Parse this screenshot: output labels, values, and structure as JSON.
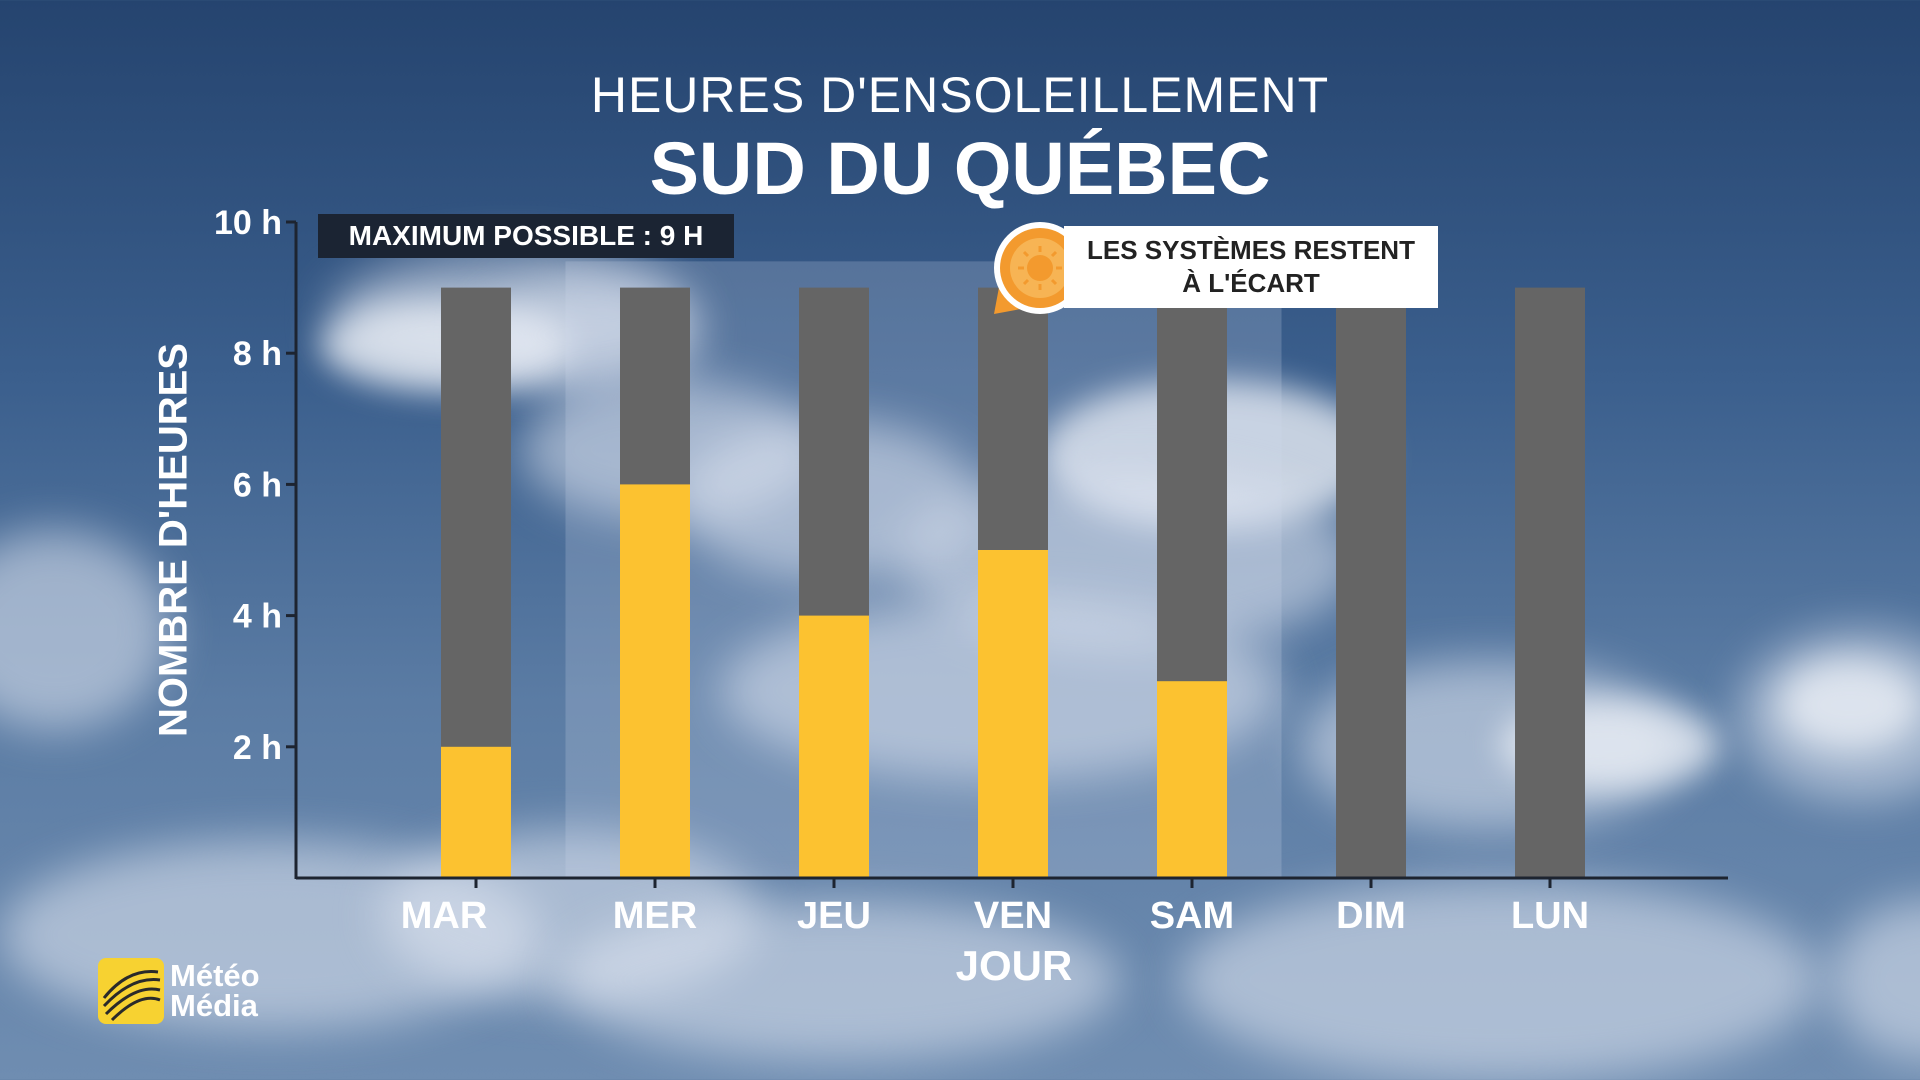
{
  "header": {
    "subtitle": "HEURES D'ENSOLEILLEMENT",
    "title": "SUD DU QUÉBEC"
  },
  "annotation": {
    "max_label": "MAXIMUM POSSIBLE : 9 H",
    "callout_line1": "LES SYSTÈMES RESTENT",
    "callout_line2": "À L'ÉCART",
    "callout_icon": "sun-icon"
  },
  "brand": {
    "line1": "Météo",
    "line2": "Média",
    "logo_color": "#f7d231"
  },
  "colors": {
    "sun": "#fcc230",
    "max": "#656565"
  },
  "chart_data": {
    "type": "bar",
    "stacked": false,
    "categories": [
      "MAR",
      "MER",
      "JEU",
      "VEN",
      "SAM",
      "DIM",
      "LUN"
    ],
    "series": [
      {
        "values": [
          9,
          9,
          9,
          9,
          9,
          9,
          9
        ],
        "color": "#656565"
      },
      {
        "values": [
          2,
          6,
          4,
          5,
          3,
          0,
          0
        ],
        "color": "#fcc230"
      }
    ],
    "highlighted_categories": [
      "MER",
      "JEU",
      "VEN",
      "SAM"
    ],
    "xlabel": "JOUR",
    "ylabel": "NOMBRE D'HEURES",
    "ylim": [
      0,
      10
    ],
    "yticks": [
      {
        "value": 2,
        "label": "2 h"
      },
      {
        "value": 4,
        "label": "4 h"
      },
      {
        "value": 6,
        "label": "6 h"
      },
      {
        "value": 8,
        "label": "8 h"
      },
      {
        "value": 10,
        "label": "10 h"
      }
    ],
    "grid": false
  }
}
